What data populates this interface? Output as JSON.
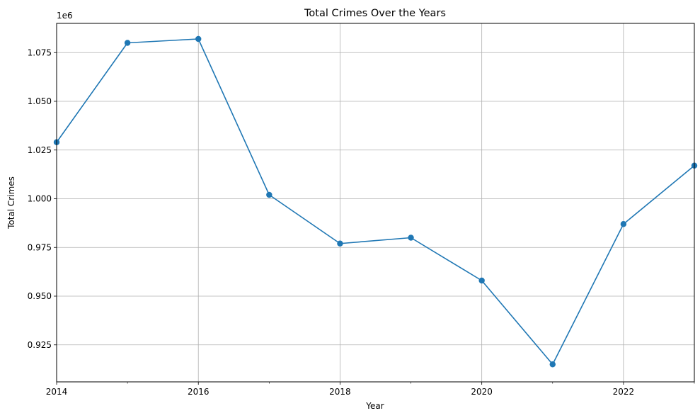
{
  "chart_data": {
    "type": "line",
    "title": "Total Crimes Over the Years",
    "xlabel": "Year",
    "ylabel": "Total Crimes",
    "y_offset_label": "1e6",
    "x": [
      2014,
      2015,
      2016,
      2017,
      2018,
      2019,
      2020,
      2021,
      2022,
      2023
    ],
    "series": [
      {
        "values": [
          1029000,
          1080000,
          1082000,
          1002000,
          977000,
          980000,
          958000,
          915000,
          987000,
          1017000
        ],
        "color": "#1f77b4",
        "marker": "circle"
      }
    ],
    "xlim": [
      2014,
      2023
    ],
    "ylim": [
      906000,
      1090000
    ],
    "x_ticks_major": [
      2014,
      2016,
      2018,
      2020,
      2022
    ],
    "x_ticks_minor": [
      2015,
      2017,
      2019,
      2021,
      2023
    ],
    "x_tick_labels": [
      "2014",
      "2016",
      "2018",
      "2020",
      "2022"
    ],
    "y_ticks": [
      925000,
      950000,
      975000,
      1000000,
      1025000,
      1050000,
      1075000
    ],
    "y_tick_labels": [
      "0.925",
      "0.950",
      "0.975",
      "1.000",
      "1.025",
      "1.050",
      "1.075"
    ],
    "grid": true,
    "legend": "none"
  }
}
